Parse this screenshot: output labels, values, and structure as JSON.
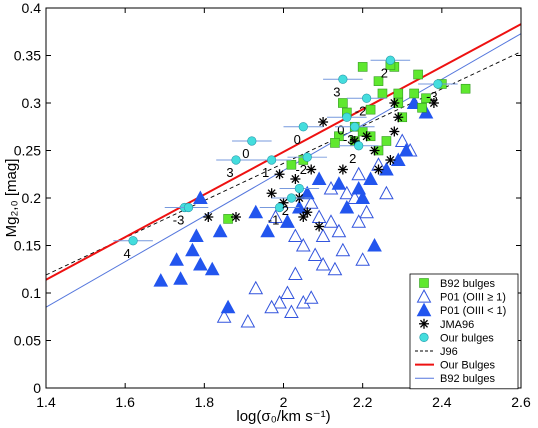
{
  "chart_data": {
    "type": "scatter",
    "xlabel": "log(σ₀/km s⁻¹)",
    "ylabel": "Mg₂,₀ [mag]",
    "xlim": [
      1.4,
      2.6
    ],
    "ylim": [
      0,
      0.4
    ],
    "xticks": [
      "1.4",
      "1.6",
      "1.8",
      "2",
      "2.2",
      "2.4",
      "2.6"
    ],
    "yticks": [
      "0",
      "0.05",
      "0.1",
      "0.15",
      "0.2",
      "0.25",
      "0.3",
      "0.35",
      "0.4"
    ],
    "xtick_values": [
      1.4,
      1.6,
      1.8,
      2.0,
      2.2,
      2.4,
      2.6
    ],
    "ytick_values": [
      0,
      0.05,
      0.1,
      0.15,
      0.2,
      0.25,
      0.3,
      0.35,
      0.4
    ],
    "grid": false,
    "legend_position": "bottom-right",
    "legend": [
      {
        "label": "B92 bulges",
        "marker": "square",
        "color": "#5fe82e"
      },
      {
        "label": "P01 (OIII ≥ 1)",
        "marker": "open-triangle",
        "color": "#3355dd"
      },
      {
        "label": "P01 (OIII < 1)",
        "marker": "filled-triangle",
        "color": "#2255ee"
      },
      {
        "label": "JMA96",
        "marker": "star",
        "color": "#000000"
      },
      {
        "label": "Our bulges",
        "marker": "circle",
        "color": "#44dddd"
      },
      {
        "label": "J96",
        "marker": "dashed-line",
        "color": "#000000"
      },
      {
        "label": "Our Bulges",
        "marker": "line",
        "color": "#ee1111"
      },
      {
        "label": "B92 bulges",
        "marker": "line",
        "color": "#5577dd"
      }
    ],
    "lines": [
      {
        "name": "J96",
        "x": [
          1.4,
          2.6
        ],
        "y": [
          0.119,
          0.354
        ],
        "color": "#000000",
        "style": "dashed"
      },
      {
        "name": "Our Bulges",
        "x": [
          1.4,
          2.6
        ],
        "y": [
          0.114,
          0.383
        ],
        "color": "#ee1111",
        "style": "solid"
      },
      {
        "name": "B92 bulges",
        "x": [
          1.4,
          2.6
        ],
        "y": [
          0.085,
          0.373
        ],
        "color": "#5577dd",
        "style": "solid"
      }
    ],
    "series": [
      {
        "name": "B92 bulges",
        "marker": "square",
        "color": "#5fe82e",
        "points": [
          [
            2.2,
            0.338
          ],
          [
            2.28,
            0.338
          ],
          [
            2.27,
            0.34
          ],
          [
            2.34,
            0.33
          ],
          [
            2.4,
            0.32
          ],
          [
            2.46,
            0.315
          ],
          [
            2.24,
            0.323
          ],
          [
            2.25,
            0.31
          ],
          [
            2.29,
            0.31
          ],
          [
            2.33,
            0.31
          ],
          [
            2.36,
            0.305
          ],
          [
            2.35,
            0.295
          ],
          [
            2.3,
            0.285
          ],
          [
            2.15,
            0.3
          ],
          [
            2.16,
            0.29
          ],
          [
            2.18,
            0.275
          ],
          [
            2.2,
            0.27
          ],
          [
            2.14,
            0.265
          ],
          [
            2.18,
            0.26
          ],
          [
            2.22,
            0.265
          ],
          [
            2.26,
            0.26
          ],
          [
            2.24,
            0.25
          ],
          [
            2.13,
            0.258
          ],
          [
            2.02,
            0.235
          ],
          [
            2.05,
            0.24
          ],
          [
            1.86,
            0.178
          ],
          [
            2.29,
            0.3
          ],
          [
            2.22,
            0.293
          ]
        ]
      },
      {
        "name": "P01 (OIII ≥ 1)",
        "marker": "open-triangle",
        "color": "#3355dd",
        "points": [
          [
            2.3,
            0.26
          ],
          [
            2.32,
            0.25
          ],
          [
            2.24,
            0.235
          ],
          [
            2.19,
            0.225
          ],
          [
            2.16,
            0.205
          ],
          [
            2.12,
            0.21
          ],
          [
            2.07,
            0.195
          ],
          [
            2.09,
            0.18
          ],
          [
            2.12,
            0.175
          ],
          [
            2.18,
            0.2
          ],
          [
            2.14,
            0.165
          ],
          [
            2.1,
            0.16
          ],
          [
            2.01,
            0.175
          ],
          [
            1.98,
            0.18
          ],
          [
            2.03,
            0.16
          ],
          [
            2.05,
            0.15
          ],
          [
            2.08,
            0.14
          ],
          [
            2.1,
            0.13
          ],
          [
            2.13,
            0.125
          ],
          [
            2.15,
            0.145
          ],
          [
            2.2,
            0.135
          ],
          [
            2.03,
            0.12
          ],
          [
            2.01,
            0.1
          ],
          [
            1.99,
            0.09
          ],
          [
            1.97,
            0.085
          ],
          [
            2.05,
            0.09
          ],
          [
            2.02,
            0.08
          ],
          [
            2.07,
            0.095
          ],
          [
            1.91,
            0.07
          ],
          [
            1.85,
            0.075
          ],
          [
            1.93,
            0.105
          ],
          [
            2.21,
            0.185
          ],
          [
            2.19,
            0.175
          ],
          [
            2.26,
            0.205
          ]
        ]
      },
      {
        "name": "P01 (OIII < 1)",
        "marker": "filled-triangle",
        "color": "#2255ee",
        "points": [
          [
            2.33,
            0.3
          ],
          [
            2.36,
            0.29
          ],
          [
            2.31,
            0.25
          ],
          [
            2.29,
            0.24
          ],
          [
            2.26,
            0.23
          ],
          [
            2.22,
            0.22
          ],
          [
            2.19,
            0.21
          ],
          [
            2.2,
            0.2
          ],
          [
            2.14,
            0.215
          ],
          [
            2.09,
            0.22
          ],
          [
            2.06,
            0.205
          ],
          [
            2.04,
            0.19
          ],
          [
            2.01,
            0.175
          ],
          [
            1.96,
            0.165
          ],
          [
            1.93,
            0.185
          ],
          [
            1.79,
            0.2
          ],
          [
            1.84,
            0.165
          ],
          [
            1.78,
            0.16
          ],
          [
            1.77,
            0.145
          ],
          [
            1.79,
            0.13
          ],
          [
            1.82,
            0.125
          ],
          [
            1.73,
            0.135
          ],
          [
            1.74,
            0.115
          ],
          [
            1.69,
            0.113
          ],
          [
            1.86,
            0.085
          ],
          [
            2.23,
            0.15
          ],
          [
            2.16,
            0.19
          ]
        ]
      },
      {
        "name": "JMA96",
        "marker": "star",
        "color": "#000000",
        "points": [
          [
            2.38,
            0.3
          ],
          [
            2.28,
            0.3
          ],
          [
            2.29,
            0.285
          ],
          [
            2.28,
            0.27
          ],
          [
            2.23,
            0.25
          ],
          [
            2.21,
            0.265
          ],
          [
            2.18,
            0.26
          ],
          [
            2.27,
            0.24
          ],
          [
            2.24,
            0.23
          ],
          [
            2.15,
            0.23
          ],
          [
            2.1,
            0.28
          ],
          [
            2.07,
            0.23
          ],
          [
            2.03,
            0.22
          ],
          [
            2.04,
            0.2
          ],
          [
            2.0,
            0.195
          ],
          [
            1.99,
            0.225
          ],
          [
            1.97,
            0.205
          ],
          [
            1.88,
            0.18
          ],
          [
            1.81,
            0.18
          ],
          [
            2.05,
            0.18
          ],
          [
            2.09,
            0.17
          ],
          [
            2.06,
            0.185
          ]
        ]
      },
      {
        "name": "Our bulges",
        "marker": "circle",
        "color": "#44dddd",
        "xerr": 0.05,
        "points": [
          [
            1.62,
            0.155,
            "4"
          ],
          [
            1.75,
            0.19,
            "-3"
          ],
          [
            1.76,
            0.19,
            ""
          ],
          [
            1.88,
            0.24,
            "3"
          ],
          [
            1.97,
            0.24,
            "1"
          ],
          [
            1.92,
            0.26,
            "0"
          ],
          [
            1.99,
            0.19,
            "-1"
          ],
          [
            2.02,
            0.2,
            "2"
          ],
          [
            2.05,
            0.275,
            "0"
          ],
          [
            2.06,
            0.243,
            "-2"
          ],
          [
            2.15,
            0.325,
            "3"
          ],
          [
            2.16,
            0.285,
            "0"
          ],
          [
            2.21,
            0.305,
            "-2"
          ],
          [
            2.18,
            0.275,
            "-3"
          ],
          [
            2.19,
            0.255,
            "2"
          ],
          [
            2.27,
            0.345,
            "2"
          ],
          [
            2.39,
            0.32,
            "-3"
          ],
          [
            2.04,
            0.21,
            ""
          ]
        ]
      }
    ]
  }
}
